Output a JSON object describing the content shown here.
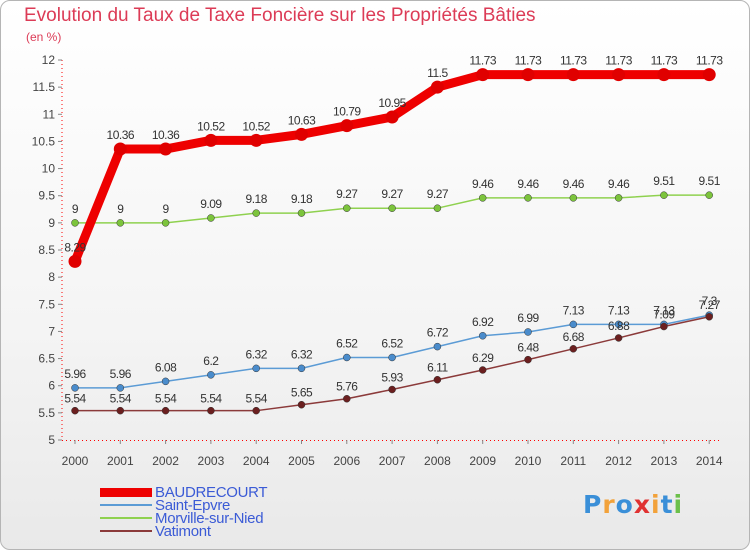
{
  "header": {
    "title": "Evolution du Taux de Taxe Foncière sur les Propriétés Bâties",
    "unit": "(en %)"
  },
  "logo": {
    "text": "Proxiti",
    "colors": [
      "#3a8fd8",
      "#f2a23a",
      "#3a8fd8",
      "#e03232",
      "#f2a23a",
      "#3a8fd8",
      "#6cc04a"
    ]
  },
  "chart_data": {
    "type": "line",
    "title": "Evolution du Taux de Taxe Foncière sur les Propriétés Bâties",
    "ylabel": "(en %)",
    "xlabel": "",
    "ylim": [
      5,
      12
    ],
    "yticks": [
      "5",
      "5.5",
      "6",
      "6.5",
      "7",
      "7.5",
      "8",
      "8.5",
      "9",
      "9.5",
      "10",
      "10.5",
      "11",
      "11.5",
      "12"
    ],
    "categories": [
      "2000",
      "2001",
      "2002",
      "2003",
      "2004",
      "2005",
      "2006",
      "2007",
      "2008",
      "2009",
      "2010",
      "2011",
      "2012",
      "2013",
      "2014"
    ],
    "grid": false,
    "legend_position": "bottom-left",
    "series": [
      {
        "name": "BAUDRECOURT",
        "color": "#ee0000",
        "marker_color": "#e00000",
        "values": [
          8.29,
          10.36,
          10.36,
          10.52,
          10.52,
          10.63,
          10.79,
          10.95,
          11.5,
          11.73,
          11.73,
          11.73,
          11.73,
          11.73,
          11.73
        ],
        "labels": [
          "8.29",
          "10.36",
          "10.36",
          "10.52",
          "10.52",
          "10.63",
          "10.79",
          "10.95",
          "11.5",
          "11.73",
          "11.73",
          "11.73",
          "11.73",
          "11.73",
          "11.73"
        ]
      },
      {
        "name": "Saint-Epvre",
        "color": "#5b9bd5",
        "marker_color": "#4a8ccc",
        "values": [
          5.96,
          5.96,
          6.08,
          6.2,
          6.32,
          6.32,
          6.52,
          6.52,
          6.72,
          6.92,
          6.99,
          7.13,
          7.13,
          7.13,
          7.3
        ],
        "labels": [
          "5.96",
          "5.96",
          "6.08",
          "6.2",
          "6.32",
          "6.32",
          "6.52",
          "6.52",
          "6.72",
          "6.92",
          "6.99",
          "7.13",
          "7.13",
          "7.13",
          "7.3"
        ]
      },
      {
        "name": "Morville-sur-Nied",
        "color": "#8fd14f",
        "marker_color": "#7cc43c",
        "values": [
          9,
          9,
          9,
          9.09,
          9.18,
          9.18,
          9.27,
          9.27,
          9.27,
          9.46,
          9.46,
          9.46,
          9.46,
          9.51,
          9.51
        ],
        "labels": [
          "9",
          "9",
          "9",
          "9.09",
          "9.18",
          "9.18",
          "9.27",
          "9.27",
          "9.27",
          "9.46",
          "9.46",
          "9.46",
          "9.46",
          "9.51",
          "9.51"
        ]
      },
      {
        "name": "Vatimont",
        "color": "#8b3a3a",
        "marker_color": "#6b1f1f",
        "values": [
          5.54,
          5.54,
          5.54,
          5.54,
          5.54,
          5.65,
          5.76,
          5.93,
          6.11,
          6.29,
          6.48,
          6.68,
          6.88,
          7.09,
          7.27
        ],
        "labels": [
          "5.54",
          "5.54",
          "5.54",
          "5.54",
          "5.54",
          "5.65",
          "5.76",
          "5.93",
          "6.11",
          "6.29",
          "6.48",
          "6.68",
          "6.88",
          "7.09",
          "7.27"
        ]
      }
    ]
  }
}
